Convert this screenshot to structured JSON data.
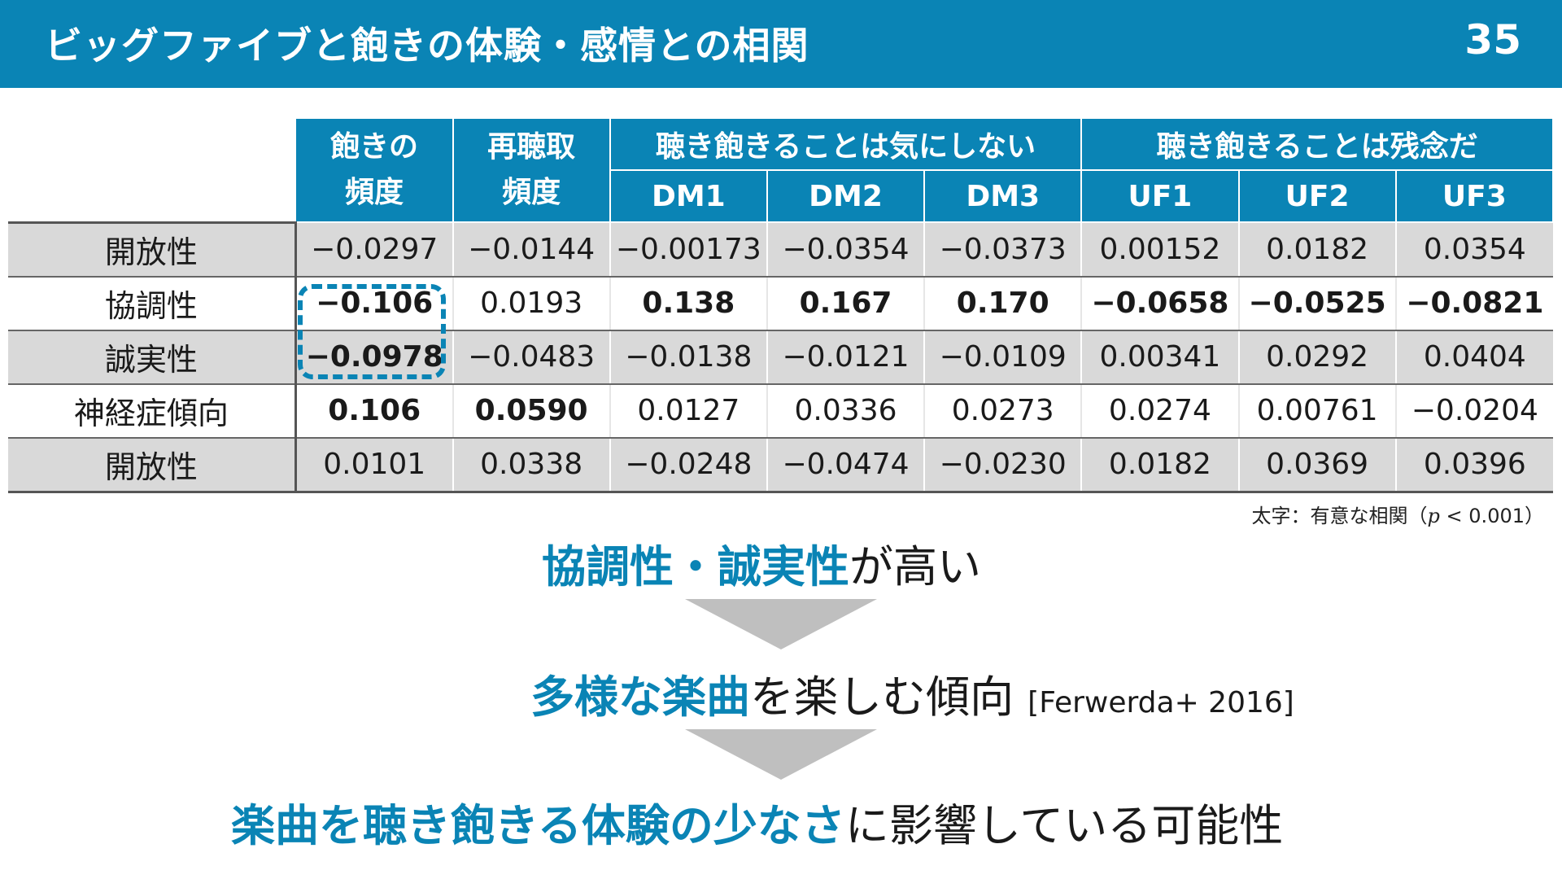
{
  "slide": {
    "title": "ビッグファイブと飽きの体験・感情との相関",
    "page_number": "35"
  },
  "table": {
    "headers": {
      "col1_line1": "飽きの",
      "col1_line2": "頻度",
      "col2_line1": "再聴取",
      "col2_line2": "頻度",
      "group1": "聴き飽きることは気にしない",
      "group2": "聴き飽きることは残念だ",
      "sub": [
        "DM1",
        "DM2",
        "DM3",
        "UF1",
        "UF2",
        "UF3"
      ]
    },
    "rows": [
      {
        "label": "開放性",
        "values": [
          "−0.0297",
          "−0.0144",
          "−0.00173",
          "−0.0354",
          "−0.0373",
          "0.00152",
          "0.0182",
          "0.0354"
        ]
      },
      {
        "label": "協調性",
        "values": [
          "−0.106",
          "0.0193",
          "0.138",
          "0.167",
          "0.170",
          "−0.0658",
          "−0.0525",
          "−0.0821"
        ]
      },
      {
        "label": "誠実性",
        "values": [
          "−0.0978",
          "−0.0483",
          "−0.0138",
          "−0.0121",
          "−0.0109",
          "0.00341",
          "0.0292",
          "0.0404"
        ]
      },
      {
        "label": "神経症傾向",
        "values": [
          "0.106",
          "0.0590",
          "0.0127",
          "0.0336",
          "0.0273",
          "0.0274",
          "0.00761",
          "−0.0204"
        ]
      },
      {
        "label": "開放性",
        "values": [
          "0.0101",
          "0.0338",
          "−0.0248",
          "−0.0474",
          "−0.0230",
          "0.0182",
          "0.0369",
          "0.0396"
        ]
      }
    ],
    "note_prefix": "太字：有意な相関（",
    "note_var": "p",
    "note_suffix": " < 0.001）"
  },
  "conclusions": {
    "line1_a": "協調性",
    "line1_sep": "・",
    "line1_b": "誠実性",
    "line1_rest": "が高い",
    "line2_a": "多様な楽曲",
    "line2_rest": "を楽しむ傾向",
    "line2_ref": "[Ferwerda+ 2016]",
    "line3_a": "楽曲を聴き飽きる体験の少なさ",
    "line3_rest": "に影響している可能性"
  },
  "colors": {
    "accent": "#0a84b5",
    "row_shade": "#d9d9d9",
    "arrow": "#bfbfbf"
  }
}
